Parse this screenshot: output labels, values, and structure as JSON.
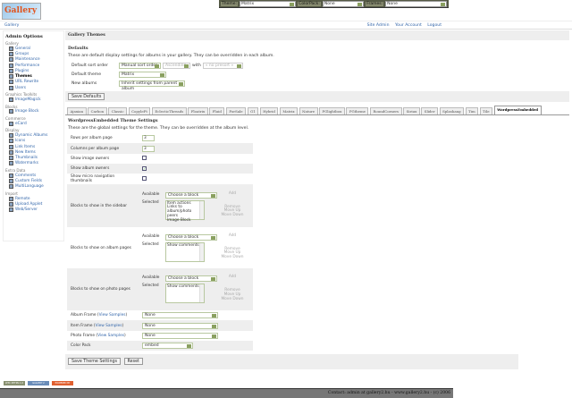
{
  "logo": "Gallery",
  "topbar": {
    "theme_label": "Theme:",
    "theme_value": "Matrix",
    "colorpack_label": "ColorPack:",
    "colorpack_value": "None",
    "frames_label": "Frames:",
    "frames_value": "None"
  },
  "breadcrumb": "Gallery",
  "header_links": [
    "Site Admin",
    "Your Account",
    "Logout"
  ],
  "sidebar": {
    "title": "Admin Options",
    "groups": [
      {
        "name": "Gallery",
        "items": [
          "General",
          "Groups",
          "Maintenance",
          "Performance",
          "Plugins",
          "Themes",
          "URL Rewrite",
          "Users"
        ]
      },
      {
        "name": "Graphics Toolkits",
        "items": [
          "ImageMagick"
        ]
      },
      {
        "name": "Blocks",
        "items": [
          "Image Block"
        ]
      },
      {
        "name": "Commerce",
        "items": [
          "eCard"
        ]
      },
      {
        "name": "Display",
        "items": [
          "Dynamic Albums",
          "Icons",
          "Link Items",
          "New Items",
          "Thumbnails",
          "Watermarks"
        ]
      },
      {
        "name": "Extra Data",
        "items": [
          "Comments",
          "Custom Fields",
          "MultiLanguage"
        ]
      },
      {
        "name": "Import",
        "items": [
          "Remote",
          "Upload Applet",
          "Web/Server"
        ]
      }
    ],
    "current": "Themes"
  },
  "main": {
    "title": "Gallery Themes",
    "defaults": {
      "title": "Defaults",
      "desc": "These are default display settings for albums in your gallery. They can be overridden in each album.",
      "sort_label": "Default sort order",
      "sort_value": "Manual sort order",
      "direction_value": "Ascending",
      "with_label": "with",
      "presort_value": "« no presort »",
      "theme_label": "Default theme",
      "theme_value": "Matrix",
      "new_albums_label": "New albums",
      "new_albums_value": "Inherit settings from parent album",
      "save": "Save Defaults"
    },
    "tabs": [
      "Ajaxian",
      "Carbon",
      "Classic",
      "CopyleFt",
      "EclecticThreads",
      "Floatrix",
      "Fluid",
      "ForSale",
      "G1",
      "Hybrid",
      "Matrix",
      "Nature",
      "PGlightbox",
      "PGtheme",
      "RoundCorners",
      "Siriux",
      "Slider",
      "Splashang",
      "Tim",
      "Tile",
      "WordpressEmbedded"
    ],
    "active_tab": "WordpressEmbedded",
    "settings": {
      "title": "WordpressEmbedded Theme Settings",
      "desc": "These are the global settings for the theme. They can be overridden at the album level.",
      "rows_label": "Rows per album page",
      "rows_value": "3",
      "cols_label": "Columns per album page",
      "cols_value": "3",
      "image_owners_label": "Show image owners",
      "image_owners": false,
      "album_owners_label": "Show album owners",
      "album_owners": true,
      "micro_label": "Show micro navigation thumbnails",
      "micro": false,
      "available": "Available",
      "selected": "Selected",
      "choose": "Choose a block",
      "add": "Add",
      "remove": "Remove",
      "up": "Move Up",
      "down": "Move Down",
      "sidebar_label": "Blocks to show in the sidebar",
      "sidebar_selected": [
        "Item actions",
        "Links to album/photo peers",
        "Image Block"
      ],
      "album_label": "Blocks to show on album pages",
      "album_selected": [
        "Show comments"
      ],
      "photo_label": "Blocks to show on photo pages",
      "photo_selected": [
        "Show comments"
      ],
      "view_samples": "View Samples",
      "album_frame_label": "Album Frame",
      "album_frame": "None",
      "item_frame_label": "Item Frame",
      "item_frame": "None",
      "photo_frame_label": "Photo Frame",
      "photo_frame": "None",
      "color_pack_label": "Color Pack",
      "color_pack": "embed",
      "save": "Save Theme Settings",
      "reset": "Reset"
    }
  },
  "badges": [
    "W3C XHTML 1.0",
    "GALLERY 2",
    "POWERED BY GALLERY"
  ],
  "footer": "Contact: admin at gallery2.hu - www.gallery2.hu - (c) 2006",
  "colors": {
    "link": "#3366aa",
    "topbar": "#555a45",
    "footer": "#777777"
  }
}
